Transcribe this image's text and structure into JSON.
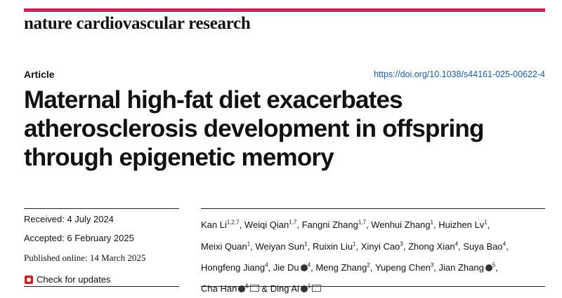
{
  "journal": "nature cardiovascular research",
  "article_type": "Article",
  "doi": "https://doi.org/10.1038/s44161-025-00622-4",
  "title": "Maternal high-fat diet exacerbates atherosclerosis development in offspring through epigenetic memory",
  "dates": {
    "received": "Received: 4 July 2024",
    "accepted": "Accepted: 6 February 2025",
    "published": "Published online: 14 March 2025"
  },
  "check_updates": "Check for updates",
  "authors": [
    {
      "name": "Kan Li",
      "affiliations": "1,2,7"
    },
    {
      "name": "Weiqi Qian",
      "affiliations": "1,7"
    },
    {
      "name": "Fangni Zhang",
      "affiliations": "1,7"
    },
    {
      "name": "Wenhui Zhang",
      "affiliations": "1"
    },
    {
      "name": "Huizhen Lv",
      "affiliations": "1"
    },
    {
      "name": "Meixi Quan",
      "affiliations": "1"
    },
    {
      "name": "Weiyan Sun",
      "affiliations": "1"
    },
    {
      "name": "Ruixin Liu",
      "affiliations": "1"
    },
    {
      "name": "Xinyi Cao",
      "affiliations": "3"
    },
    {
      "name": "Zhong Xian",
      "affiliations": "4"
    },
    {
      "name": "Suya Bao",
      "affiliations": "4"
    },
    {
      "name": "Hongfeng Jiang",
      "affiliations": "4"
    },
    {
      "name": "Jie Du",
      "affiliations": "4",
      "orcid": true
    },
    {
      "name": "Meng Zhang",
      "affiliations": "2"
    },
    {
      "name": "Yupeng Chen",
      "affiliations": "3"
    },
    {
      "name": "Jian Zhang",
      "affiliations": "5",
      "orcid": true
    },
    {
      "name": "Cha Han",
      "affiliations": "6",
      "orcid": true,
      "corresponding": true
    },
    {
      "name": "Ding Ai",
      "affiliations": "1",
      "orcid": true,
      "corresponding": true
    }
  ],
  "authors_conjunction": "&"
}
